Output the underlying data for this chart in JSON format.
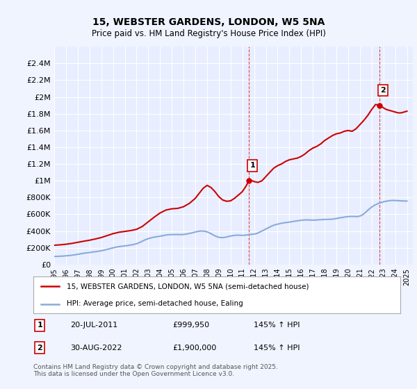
{
  "title": "15, WEBSTER GARDENS, LONDON, W5 5NA",
  "subtitle": "Price paid vs. HM Land Registry's House Price Index (HPI)",
  "ylim": [
    0,
    2600000
  ],
  "yticks": [
    0,
    200000,
    400000,
    600000,
    800000,
    1000000,
    1200000,
    1400000,
    1600000,
    1800000,
    2000000,
    2200000,
    2400000
  ],
  "ytick_labels": [
    "£0",
    "£200K",
    "£400K",
    "£600K",
    "£800K",
    "£1M",
    "£1.2M",
    "£1.4M",
    "£1.6M",
    "£1.8M",
    "£2M",
    "£2.2M",
    "£2.4M"
  ],
  "xlim_year_start": 1995,
  "xlim_year_end": 2025,
  "background_color": "#f0f4ff",
  "plot_bg_color": "#e8eeff",
  "grid_color": "#ffffff",
  "red_line_color": "#cc0000",
  "blue_line_color": "#88aadd",
  "marker1_year": 2011.55,
  "marker2_year": 2022.66,
  "marker1_value": 999950,
  "marker2_value": 1900000,
  "vline_color": "#dd4444",
  "annotation1_label": "1",
  "annotation2_label": "2",
  "legend_label_red": "15, WEBSTER GARDENS, LONDON, W5 5NA (semi-detached house)",
  "legend_label_blue": "HPI: Average price, semi-detached house, Ealing",
  "note1_num": "1",
  "note1_date": "20-JUL-2011",
  "note1_price": "£999,950",
  "note1_hpi": "145% ↑ HPI",
  "note2_num": "2",
  "note2_date": "30-AUG-2022",
  "note2_price": "£1,900,000",
  "note2_hpi": "145% ↑ HPI",
  "footer": "Contains HM Land Registry data © Crown copyright and database right 2025.\nThis data is licensed under the Open Government Licence v3.0.",
  "hpi_years": [
    1995,
    1995.25,
    1995.5,
    1995.75,
    1996,
    1996.25,
    1996.5,
    1996.75,
    1997,
    1997.25,
    1997.5,
    1997.75,
    1998,
    1998.25,
    1998.5,
    1998.75,
    1999,
    1999.25,
    1999.5,
    1999.75,
    2000,
    2000.25,
    2000.5,
    2000.75,
    2001,
    2001.25,
    2001.5,
    2001.75,
    2002,
    2002.25,
    2002.5,
    2002.75,
    2003,
    2003.25,
    2003.5,
    2003.75,
    2004,
    2004.25,
    2004.5,
    2004.75,
    2005,
    2005.25,
    2005.5,
    2005.75,
    2006,
    2006.25,
    2006.5,
    2006.75,
    2007,
    2007.25,
    2007.5,
    2007.75,
    2008,
    2008.25,
    2008.5,
    2008.75,
    2009,
    2009.25,
    2009.5,
    2009.75,
    2010,
    2010.25,
    2010.5,
    2010.75,
    2011,
    2011.25,
    2011.5,
    2011.75,
    2012,
    2012.25,
    2012.5,
    2012.75,
    2013,
    2013.25,
    2013.5,
    2013.75,
    2014,
    2014.25,
    2014.5,
    2014.75,
    2015,
    2015.25,
    2015.5,
    2015.75,
    2016,
    2016.25,
    2016.5,
    2016.75,
    2017,
    2017.25,
    2017.5,
    2017.75,
    2018,
    2018.25,
    2018.5,
    2018.75,
    2019,
    2019.25,
    2019.5,
    2019.75,
    2020,
    2020.25,
    2020.5,
    2020.75,
    2021,
    2021.25,
    2021.5,
    2021.75,
    2022,
    2022.25,
    2022.5,
    2022.75,
    2023,
    2023.25,
    2023.5,
    2023.75,
    2024,
    2024.25,
    2024.5,
    2024.75,
    2025
  ],
  "hpi_values": [
    95000,
    97000,
    99000,
    101000,
    104000,
    107000,
    111000,
    116000,
    122000,
    128000,
    134000,
    139000,
    143000,
    148000,
    153000,
    158000,
    164000,
    172000,
    181000,
    190000,
    199000,
    207000,
    213000,
    218000,
    222000,
    227000,
    233000,
    239000,
    248000,
    262000,
    279000,
    296000,
    309000,
    319000,
    327000,
    332000,
    338000,
    345000,
    352000,
    356000,
    357000,
    358000,
    358000,
    357000,
    359000,
    364000,
    371000,
    379000,
    388000,
    396000,
    400000,
    398000,
    390000,
    375000,
    355000,
    337000,
    325000,
    321000,
    324000,
    332000,
    340000,
    346000,
    350000,
    350000,
    348000,
    350000,
    355000,
    360000,
    363000,
    372000,
    388000,
    406000,
    424000,
    442000,
    459000,
    473000,
    482000,
    490000,
    497000,
    501000,
    506000,
    512000,
    518000,
    523000,
    528000,
    532000,
    533000,
    531000,
    530000,
    531000,
    534000,
    536000,
    538000,
    539000,
    540000,
    543000,
    549000,
    556000,
    562000,
    568000,
    572000,
    574000,
    574000,
    572000,
    578000,
    596000,
    625000,
    658000,
    686000,
    708000,
    725000,
    738000,
    748000,
    756000,
    762000,
    765000,
    764000,
    762000,
    760000,
    758000,
    758000
  ],
  "red_years": [
    1995,
    1995.5,
    1996,
    1996.5,
    1997,
    1997.5,
    1998,
    1998.5,
    1999,
    1999.5,
    2000,
    2000.5,
    2001,
    2001.5,
    2002,
    2002.5,
    2003,
    2003.5,
    2004,
    2004.5,
    2005,
    2005.5,
    2006,
    2006.5,
    2007,
    2007.33,
    2007.67,
    2008,
    2008.33,
    2008.67,
    2009,
    2009.33,
    2009.67,
    2010,
    2010.33,
    2010.67,
    2011,
    2011.33,
    2011.55,
    2011.67,
    2012,
    2012.33,
    2012.67,
    2013,
    2013.33,
    2013.67,
    2014,
    2014.33,
    2014.67,
    2015,
    2015.33,
    2015.67,
    2016,
    2016.33,
    2016.67,
    2017,
    2017.33,
    2017.67,
    2018,
    2018.33,
    2018.67,
    2019,
    2019.33,
    2019.67,
    2020,
    2020.33,
    2020.67,
    2021,
    2021.33,
    2021.67,
    2022,
    2022.33,
    2022.66,
    2022.83,
    2023,
    2023.25,
    2023.5,
    2023.75,
    2024,
    2024.25,
    2024.5,
    2024.75,
    2025
  ],
  "red_values": [
    230000,
    235000,
    242000,
    252000,
    265000,
    278000,
    290000,
    305000,
    322000,
    345000,
    368000,
    385000,
    395000,
    405000,
    420000,
    455000,
    510000,
    565000,
    615000,
    650000,
    665000,
    670000,
    690000,
    730000,
    790000,
    850000,
    910000,
    945000,
    920000,
    870000,
    810000,
    770000,
    755000,
    760000,
    790000,
    830000,
    870000,
    940000,
    999950,
    1010000,
    990000,
    980000,
    1000000,
    1050000,
    1100000,
    1150000,
    1180000,
    1200000,
    1230000,
    1250000,
    1260000,
    1270000,
    1290000,
    1320000,
    1360000,
    1390000,
    1410000,
    1440000,
    1480000,
    1510000,
    1540000,
    1560000,
    1570000,
    1590000,
    1600000,
    1590000,
    1620000,
    1670000,
    1720000,
    1780000,
    1850000,
    1910000,
    1900000,
    1890000,
    1870000,
    1850000,
    1840000,
    1830000,
    1820000,
    1810000,
    1810000,
    1820000,
    1830000
  ]
}
